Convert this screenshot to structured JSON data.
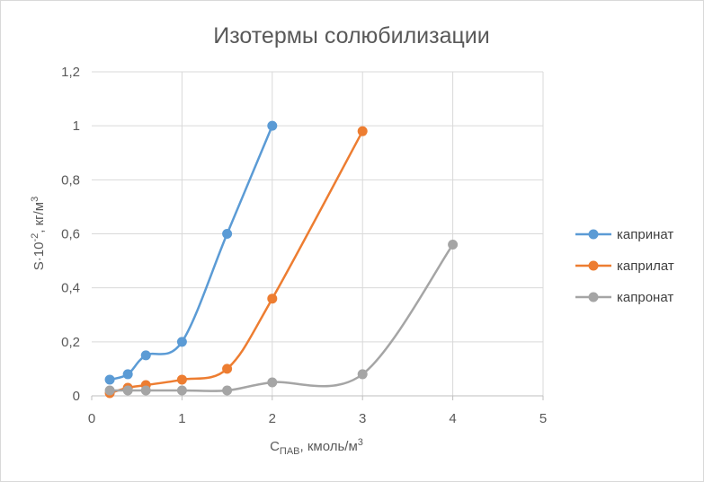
{
  "chart_data": {
    "type": "line",
    "title": "Изотермы солюбилизации",
    "xlabel": {
      "main": "C",
      "sub": "ПАВ",
      "rest": ", кмоль/м",
      "sup": "3"
    },
    "ylabel": {
      "a": "S",
      "b": "·10",
      "sup1": "-2",
      "c": ", кг/м",
      "sup2": "3"
    },
    "xlim": [
      0,
      5
    ],
    "ylim": [
      0,
      1.2
    ],
    "x_ticks": [
      "0",
      "1",
      "2",
      "3",
      "4",
      "5"
    ],
    "y_ticks": [
      "0",
      "0,2",
      "0,4",
      "0,6",
      "0,8",
      "1",
      "1,2"
    ],
    "grid": "vertical and horizontal major gridlines",
    "legend_position": "right",
    "smooth": true,
    "series": [
      {
        "name": "капринат",
        "color": "#5b9bd5",
        "x": [
          0.2,
          0.4,
          0.6,
          1.0,
          1.5,
          2.0
        ],
        "y": [
          0.06,
          0.08,
          0.15,
          0.2,
          0.6,
          1.0
        ]
      },
      {
        "name": "каприлат",
        "color": "#ed7d31",
        "x": [
          0.2,
          0.4,
          0.6,
          1.0,
          1.5,
          2.0,
          3.0
        ],
        "y": [
          0.01,
          0.03,
          0.04,
          0.06,
          0.1,
          0.36,
          0.98
        ]
      },
      {
        "name": "капронат",
        "color": "#a5a5a5",
        "x": [
          0.2,
          0.4,
          0.6,
          1.0,
          1.5,
          2.0,
          3.0,
          4.0
        ],
        "y": [
          0.02,
          0.02,
          0.02,
          0.02,
          0.02,
          0.05,
          0.08,
          0.56
        ]
      }
    ]
  }
}
